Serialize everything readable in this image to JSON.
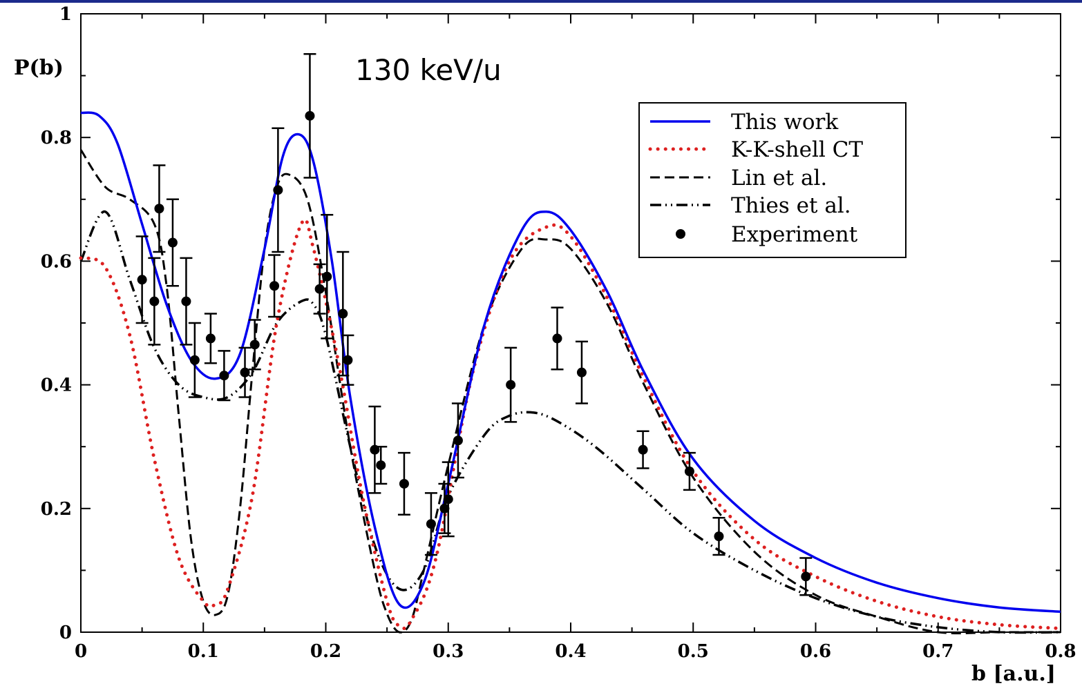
{
  "chart_data": {
    "type": "line",
    "annotation": "130 keV/u",
    "xlabel": "b [a.u.]",
    "ylabel": "P(b)",
    "xlim": [
      0,
      0.8
    ],
    "ylim": [
      0,
      1
    ],
    "x_ticks": [
      "0",
      "0.1",
      "0.2",
      "0.3",
      "0.4",
      "0.5",
      "0.6",
      "0.7",
      "0.8"
    ],
    "y_ticks": [
      "0",
      "0.2",
      "0.4",
      "0.6",
      "0.8",
      "1"
    ],
    "x_tick_values": [
      0,
      0.1,
      0.2,
      0.3,
      0.4,
      0.5,
      0.6,
      0.7,
      0.8
    ],
    "y_tick_values": [
      0,
      0.2,
      0.4,
      0.6,
      0.8,
      1.0
    ],
    "grid": false,
    "legend_position": "top-right",
    "series": [
      {
        "name": "This work",
        "style": "solid",
        "color": "#0000ee",
        "x": [
          0,
          0.015,
          0.03,
          0.05,
          0.07,
          0.09,
          0.11,
          0.13,
          0.15,
          0.165,
          0.178,
          0.19,
          0.205,
          0.22,
          0.24,
          0.26,
          0.28,
          0.3,
          0.33,
          0.36,
          0.38,
          0.4,
          0.43,
          0.46,
          0.5,
          0.55,
          0.6,
          0.65,
          0.7,
          0.75,
          0.8
        ],
        "y": [
          0.84,
          0.835,
          0.79,
          0.66,
          0.53,
          0.44,
          0.41,
          0.45,
          0.62,
          0.77,
          0.805,
          0.76,
          0.6,
          0.38,
          0.17,
          0.045,
          0.08,
          0.24,
          0.5,
          0.65,
          0.68,
          0.65,
          0.55,
          0.42,
          0.28,
          0.18,
          0.12,
          0.08,
          0.055,
          0.04,
          0.033
        ]
      },
      {
        "name": "K-K-shell CT",
        "style": "dotted",
        "color": "#dd2020",
        "x": [
          0,
          0.02,
          0.04,
          0.06,
          0.08,
          0.1,
          0.11,
          0.12,
          0.14,
          0.16,
          0.18,
          0.19,
          0.21,
          0.23,
          0.25,
          0.26,
          0.27,
          0.29,
          0.32,
          0.35,
          0.38,
          0.4,
          0.43,
          0.46,
          0.5,
          0.55,
          0.6,
          0.65,
          0.7,
          0.75,
          0.8
        ],
        "y": [
          0.605,
          0.59,
          0.48,
          0.28,
          0.12,
          0.05,
          0.045,
          0.07,
          0.22,
          0.5,
          0.66,
          0.62,
          0.44,
          0.22,
          0.05,
          0.01,
          0.02,
          0.12,
          0.42,
          0.6,
          0.655,
          0.64,
          0.54,
          0.41,
          0.26,
          0.15,
          0.09,
          0.05,
          0.025,
          0.012,
          0.006
        ]
      },
      {
        "name": "Lin et al.",
        "style": "dashed",
        "color": "#000000",
        "x": [
          0,
          0.02,
          0.04,
          0.06,
          0.07,
          0.08,
          0.09,
          0.1,
          0.11,
          0.12,
          0.13,
          0.14,
          0.15,
          0.16,
          0.17,
          0.185,
          0.2,
          0.22,
          0.24,
          0.25,
          0.26,
          0.27,
          0.28,
          0.3,
          0.33,
          0.36,
          0.38,
          0.4,
          0.43,
          0.46,
          0.5,
          0.55,
          0.6,
          0.65,
          0.7,
          0.75,
          0.8
        ],
        "y": [
          0.78,
          0.72,
          0.7,
          0.66,
          0.56,
          0.35,
          0.15,
          0.05,
          0.028,
          0.06,
          0.2,
          0.42,
          0.62,
          0.72,
          0.74,
          0.7,
          0.55,
          0.3,
          0.1,
          0.03,
          0.0,
          0.02,
          0.1,
          0.27,
          0.5,
          0.62,
          0.635,
          0.62,
          0.53,
          0.4,
          0.25,
          0.13,
          0.06,
          0.025,
          0.0,
          0.0,
          0.0
        ]
      },
      {
        "name": "Thies et al.",
        "style": "dashdotdot",
        "color": "#000000",
        "x": [
          0,
          0.02,
          0.04,
          0.06,
          0.08,
          0.1,
          0.12,
          0.14,
          0.16,
          0.18,
          0.19,
          0.2,
          0.22,
          0.24,
          0.26,
          0.28,
          0.3,
          0.33,
          0.35,
          0.37,
          0.39,
          0.42,
          0.46,
          0.5,
          0.55,
          0.6,
          0.65,
          0.7,
          0.75,
          0.8
        ],
        "y": [
          0.6,
          0.68,
          0.57,
          0.46,
          0.4,
          0.38,
          0.38,
          0.42,
          0.5,
          0.535,
          0.53,
          0.48,
          0.3,
          0.14,
          0.07,
          0.1,
          0.22,
          0.32,
          0.35,
          0.355,
          0.34,
          0.3,
          0.23,
          0.16,
          0.1,
          0.055,
          0.025,
          0.008,
          0.0,
          0.0
        ]
      }
    ],
    "experiment": {
      "name": "Experiment",
      "x": [
        0.05,
        0.06,
        0.064,
        0.075,
        0.086,
        0.093,
        0.106,
        0.117,
        0.134,
        0.142,
        0.158,
        0.161,
        0.187,
        0.195,
        0.201,
        0.214,
        0.218,
        0.24,
        0.245,
        0.264,
        0.286,
        0.297,
        0.3,
        0.308,
        0.351,
        0.389,
        0.409,
        0.459,
        0.497,
        0.521,
        0.592
      ],
      "y": [
        0.57,
        0.535,
        0.685,
        0.63,
        0.535,
        0.44,
        0.475,
        0.415,
        0.42,
        0.465,
        0.56,
        0.715,
        0.835,
        0.555,
        0.575,
        0.515,
        0.44,
        0.295,
        0.27,
        0.24,
        0.175,
        0.2,
        0.215,
        0.31,
        0.4,
        0.475,
        0.42,
        0.295,
        0.26,
        0.155,
        0.09
      ],
      "err": [
        0.07,
        0.07,
        0.07,
        0.07,
        0.07,
        0.06,
        0.04,
        0.04,
        0.04,
        0.04,
        0.05,
        0.1,
        0.1,
        0.04,
        0.1,
        0.1,
        0.04,
        0.07,
        0.03,
        0.05,
        0.05,
        0.04,
        0.06,
        0.06,
        0.06,
        0.05,
        0.05,
        0.03,
        0.03,
        0.03,
        0.03
      ]
    }
  }
}
